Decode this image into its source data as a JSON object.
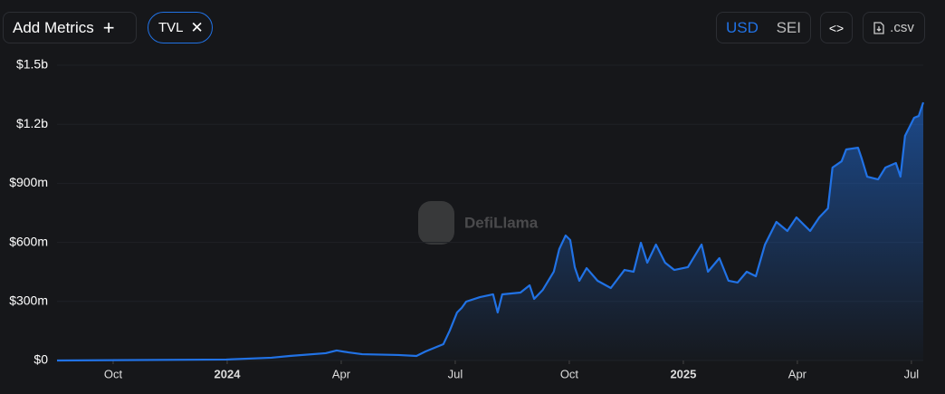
{
  "ui": {
    "add_metrics": "Add Metrics",
    "metric_chip": "TVL",
    "currencies": [
      "USD",
      "SEI"
    ],
    "active_currency": "USD",
    "csv_button": ".csv",
    "watermark": "DefiLlama"
  },
  "chart_data": {
    "type": "area",
    "color": "#2172e5",
    "x": [
      2023.627,
      2023.998,
      2024.097,
      2024.137,
      2024.216,
      2024.24,
      2024.266,
      2024.296,
      2024.375,
      2024.415,
      2024.435,
      2024.474,
      2024.488,
      2024.504,
      2024.514,
      2024.524,
      2024.554,
      2024.583,
      2024.593,
      2024.603,
      2024.643,
      2024.663,
      2024.673,
      2024.692,
      2024.716,
      2024.728,
      2024.742,
      2024.752,
      2024.762,
      2024.772,
      2024.788,
      2024.812,
      2024.841,
      2024.871,
      2024.891,
      2024.907,
      2024.921,
      2024.94,
      2024.96,
      2024.98,
      2025.01,
      2025.04,
      2025.054,
      2025.079,
      2025.099,
      2025.119,
      2025.139,
      2025.159,
      2025.179,
      2025.204,
      2025.228,
      2025.248,
      2025.278,
      2025.298,
      2025.317,
      2025.327,
      2025.347,
      2025.357,
      2025.383,
      2025.391,
      2025.403,
      2025.427,
      2025.443,
      2025.466,
      2025.476,
      2025.486,
      2025.506,
      2025.516,
      2025.526
    ],
    "values": [
      0,
      5000000,
      14000000,
      23000000,
      37000000,
      51000000,
      41000000,
      32000000,
      28000000,
      23000000,
      46000000,
      83000000,
      152000000,
      244000000,
      267000000,
      299000000,
      322000000,
      336000000,
      244000000,
      336000000,
      345000000,
      382000000,
      313000000,
      359000000,
      451000000,
      566000000,
      635000000,
      612000000,
      474000000,
      405000000,
      469000000,
      405000000,
      368000000,
      460000000,
      451000000,
      598000000,
      497000000,
      589000000,
      497000000,
      460000000,
      474000000,
      589000000,
      451000000,
      520000000,
      405000000,
      396000000,
      451000000,
      428000000,
      589000000,
      704000000,
      658000000,
      727000000,
      658000000,
      727000000,
      773000000,
      980000000,
      1012000000,
      1072000000,
      1081000000,
      1026000000,
      934000000,
      920000000,
      980000000,
      1003000000,
      934000000,
      1141000000,
      1233000000,
      1242000000,
      1311000000
    ],
    "xlim": [
      2023.627,
      2025.526
    ],
    "xticks": [
      {
        "value": 2023.75,
        "label": "Oct"
      },
      2024,
      {
        "value": 2024.25,
        "label": "Apr"
      },
      {
        "value": 2024.5,
        "label": "Jul"
      },
      {
        "value": 2024.75,
        "label": "Oct"
      },
      2025,
      {
        "value": 2025.25,
        "label": "Apr"
      },
      {
        "value": 2025.5,
        "label": "Jul"
      }
    ],
    "ylim": [
      0,
      1500000000
    ],
    "yticks": [
      {
        "value": 0,
        "label": "$0"
      },
      {
        "value": 300000000,
        "label": "$300m"
      },
      {
        "value": 600000000,
        "label": "$600m"
      },
      {
        "value": 900000000,
        "label": "$900m"
      },
      {
        "value": 1200000000,
        "label": "$1.2b"
      },
      {
        "value": 1500000000,
        "label": "$1.5b"
      }
    ],
    "grid": true
  }
}
